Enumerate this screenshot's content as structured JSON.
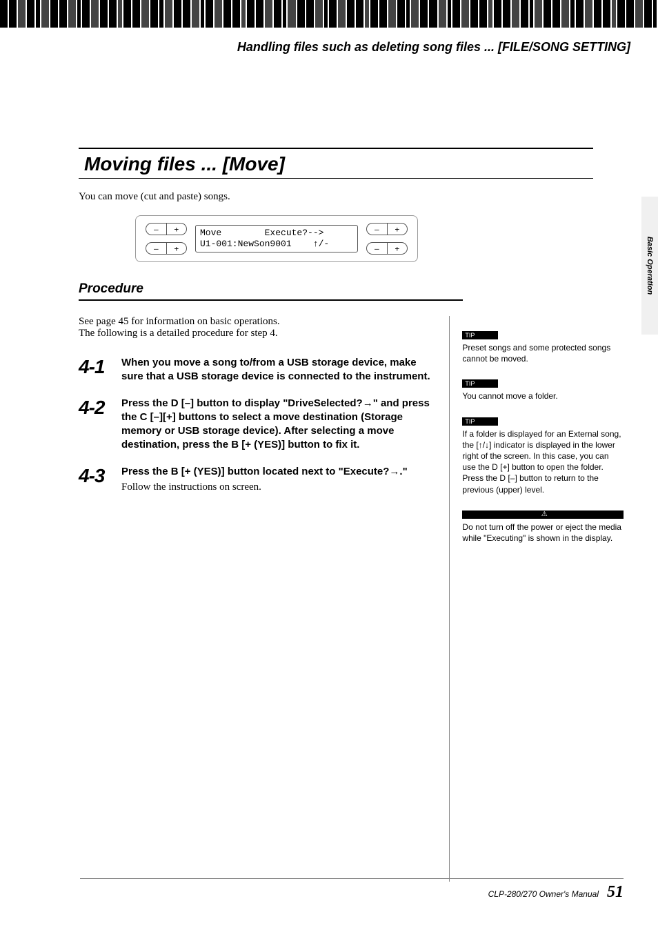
{
  "header": {
    "breadcrumb": "Handling files such as deleting song files ... [FILE/SONG SETTING]"
  },
  "side_tab": "Basic Operation",
  "section": {
    "title": "Moving files ... [Move]",
    "lead": "You can move (cut and paste) songs."
  },
  "lcd": {
    "line1": "Move        Execute?-->",
    "line2": "U1-001:NewSon9001    ↑/-",
    "minus": "–",
    "plus": "+"
  },
  "procedure": {
    "heading": "Procedure",
    "intro1": "See page 45 for information on basic operations.",
    "intro2": "The following is a detailed procedure for step 4.",
    "steps": [
      {
        "num": "4-1",
        "text": "When you move a song to/from a USB storage device, make sure that a USB storage device is connected to the instrument."
      },
      {
        "num": "4-2",
        "text": "Press the D [–] button to display \"DriveSelected?→\" and press the C [–][+] buttons to select a move destination (Storage memory or USB storage device). After selecting a move destination, press the B [+ (YES)] button to fix it."
      },
      {
        "num": "4-3",
        "text": "Press the B [+ (YES)] button located next to \"Execute?→.\"",
        "after": "Follow the instructions on screen."
      }
    ]
  },
  "tips": [
    {
      "label": "TIP",
      "text": "Preset songs and some protected songs cannot be moved."
    },
    {
      "label": "TIP",
      "text": "You cannot move a folder."
    },
    {
      "label": "TIP",
      "text": "If a folder is displayed for an External song, the [↑/↓] indicator is displayed in the lower right of the screen. In this case, you can use the D [+] button to open the folder. Press the D [–] button to return to the previous (upper) level."
    }
  ],
  "caution": {
    "label": "CAUTION",
    "icon": "⚠",
    "text": "Do not turn off the power or eject the media while \"Executing\" is shown in the display."
  },
  "footer": {
    "manual": "CLP-280/270 Owner's Manual",
    "page": "51"
  }
}
